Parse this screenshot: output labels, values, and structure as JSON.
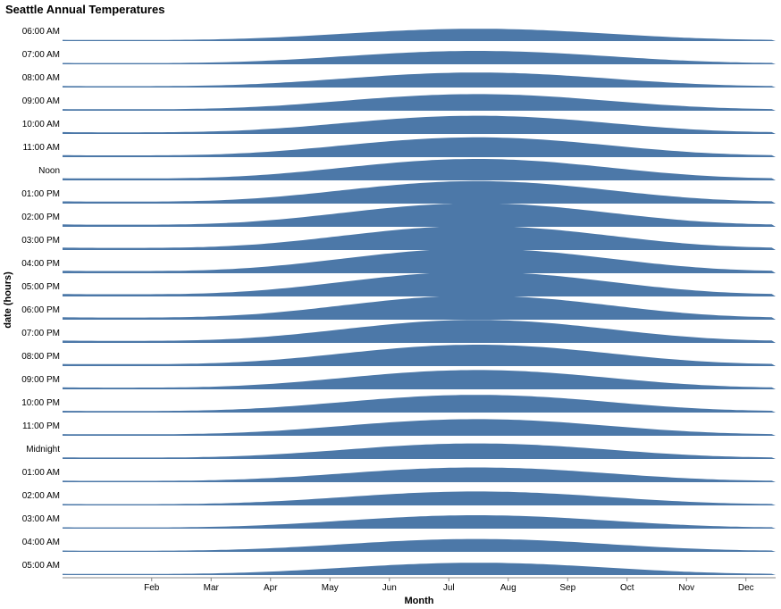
{
  "chart_data": {
    "type": "area",
    "title": "Seattle Annual Temperatures",
    "xlabel": "Month",
    "ylabel": "date (hours)",
    "color": "#4c78a8",
    "months": [
      "Feb",
      "Mar",
      "Apr",
      "May",
      "Jun",
      "Jul",
      "Aug",
      "Sep",
      "Oct",
      "Nov",
      "Dec"
    ],
    "rows": [
      {
        "label": "06:00 AM",
        "peak": 0.46
      },
      {
        "label": "07:00 AM",
        "peak": 0.5
      },
      {
        "label": "08:00 AM",
        "peak": 0.56
      },
      {
        "label": "09:00 AM",
        "peak": 0.62
      },
      {
        "label": "10:00 AM",
        "peak": 0.68
      },
      {
        "label": "11:00 AM",
        "peak": 0.74
      },
      {
        "label": "Noon",
        "peak": 0.8
      },
      {
        "label": "01:00 PM",
        "peak": 0.84
      },
      {
        "label": "02:00 PM",
        "peak": 0.88
      },
      {
        "label": "03:00 PM",
        "peak": 0.9
      },
      {
        "label": "04:00 PM",
        "peak": 0.92
      },
      {
        "label": "05:00 PM",
        "peak": 0.92
      },
      {
        "label": "06:00 PM",
        "peak": 0.9
      },
      {
        "label": "07:00 PM",
        "peak": 0.86
      },
      {
        "label": "08:00 PM",
        "peak": 0.8
      },
      {
        "label": "09:00 PM",
        "peak": 0.72
      },
      {
        "label": "10:00 PM",
        "peak": 0.66
      },
      {
        "label": "11:00 PM",
        "peak": 0.62
      },
      {
        "label": "Midnight",
        "peak": 0.58
      },
      {
        "label": "01:00 AM",
        "peak": 0.55
      },
      {
        "label": "02:00 AM",
        "peak": 0.52
      },
      {
        "label": "03:00 AM",
        "peak": 0.5
      },
      {
        "label": "04:00 AM",
        "peak": 0.48
      },
      {
        "label": "05:00 AM",
        "peak": 0.46
      }
    ]
  }
}
